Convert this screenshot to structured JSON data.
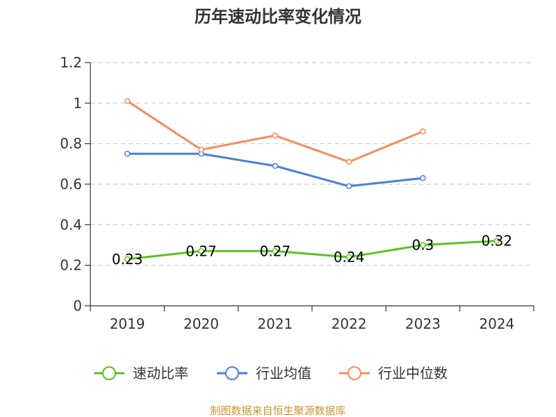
{
  "chart_data": {
    "type": "line",
    "title": "历年速动比率变化情况",
    "categories": [
      "2019",
      "2020",
      "2021",
      "2022",
      "2023",
      "2024"
    ],
    "ylim": [
      0,
      1.2
    ],
    "yticks": [
      0,
      0.2,
      0.4,
      0.6,
      0.8,
      1,
      1.2
    ],
    "ytick_labels": [
      "0",
      "0.2",
      "0.4",
      "0.6",
      "0.8",
      "1",
      "1.2"
    ],
    "grid": true,
    "legend_position": "bottom",
    "series": [
      {
        "name": "速动比率",
        "color": "#5ac31e",
        "values": [
          0.23,
          0.27,
          0.27,
          0.24,
          0.3,
          0.32
        ],
        "labels": [
          "0.23",
          "0.27",
          "0.27",
          "0.24",
          "0.3",
          "0.32"
        ]
      },
      {
        "name": "行业均值",
        "color": "#4a7fd8",
        "values": [
          0.75,
          0.75,
          0.69,
          0.59,
          0.63,
          null
        ]
      },
      {
        "name": "行业中位数",
        "color": "#f58c5a",
        "values": [
          1.01,
          0.77,
          0.84,
          0.71,
          0.86,
          null
        ]
      }
    ]
  },
  "source": "制图数据来自恒生聚源数据库"
}
